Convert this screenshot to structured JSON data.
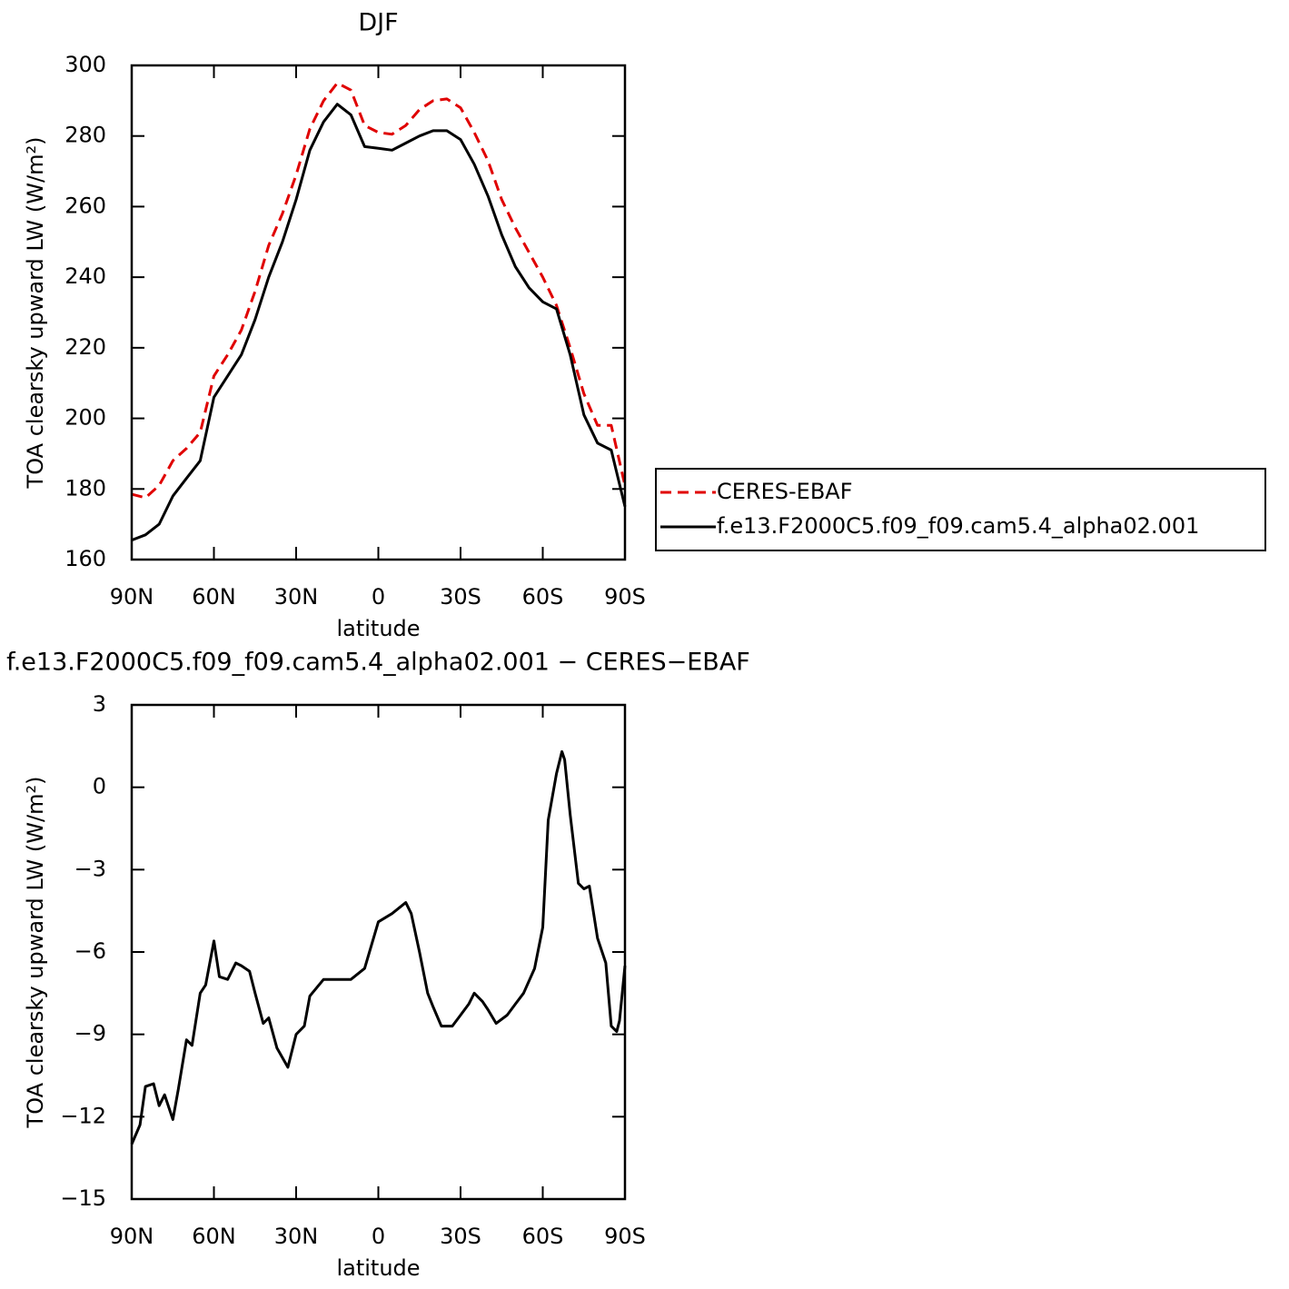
{
  "chart_data": [
    {
      "type": "line",
      "title": "DJF",
      "xlabel": "latitude",
      "ylabel": "TOA clearsky upward LW (W/m²)",
      "x": [
        90,
        85,
        80,
        75,
        70,
        65,
        60,
        55,
        50,
        45,
        40,
        35,
        30,
        25,
        20,
        15,
        10,
        5,
        0,
        -5,
        -10,
        -15,
        -20,
        -25,
        -30,
        -35,
        -40,
        -45,
        -50,
        -55,
        -60,
        -65,
        -70,
        -75,
        -80,
        -85,
        -90
      ],
      "series": [
        {
          "name": "CERES-EBAF",
          "color": "#e00000",
          "style": "dashed",
          "values": [
            178.5,
            177.5,
            181,
            188,
            191.5,
            196,
            212,
            218,
            225,
            236,
            249,
            258,
            269,
            282,
            290,
            295,
            293,
            283,
            281,
            280.5,
            283,
            287.5,
            290,
            290.5,
            288,
            281,
            273,
            262,
            254,
            247,
            240,
            232,
            220,
            207,
            198,
            198,
            181
          ]
        },
        {
          "name": "f.e13.F2000C5.f09_f09.cam5.4_alpha02.001",
          "color": "#000000",
          "style": "solid",
          "values": [
            165.5,
            167,
            170,
            178,
            183,
            188,
            206,
            212,
            218,
            228,
            240,
            250,
            262,
            276,
            284,
            289,
            286,
            277,
            276.5,
            276,
            278,
            280,
            281.5,
            281.5,
            279,
            272,
            263,
            252,
            243,
            237,
            233,
            231,
            218,
            201,
            193,
            191,
            175
          ]
        }
      ],
      "xlim": [
        90,
        -90
      ],
      "xticks": [
        {
          "value": 90,
          "label": "90N"
        },
        {
          "value": 60,
          "label": "60N"
        },
        {
          "value": 30,
          "label": "30N"
        },
        0,
        {
          "value": -30,
          "label": "30S"
        },
        {
          "value": -60,
          "label": "60S"
        },
        {
          "value": -90,
          "label": "90S"
        }
      ],
      "ylim": [
        160,
        300
      ],
      "yticks": [
        160,
        180,
        200,
        220,
        240,
        260,
        280,
        300
      ],
      "legend": "right"
    },
    {
      "type": "line",
      "title": "f.e13.F2000C5.f09_f09.cam5.4_alpha02.001 − CERES−EBAF",
      "xlabel": "latitude",
      "ylabel": "TOA clearsky upward LW (W/m²)",
      "x": [
        90,
        87,
        85,
        82,
        80,
        78,
        75,
        73,
        70,
        68,
        65,
        63,
        60,
        58,
        55,
        52,
        50,
        47,
        45,
        42,
        40,
        37,
        33,
        30,
        27,
        25,
        20,
        15,
        10,
        5,
        0,
        -5,
        -10,
        -12,
        -15,
        -18,
        -20,
        -23,
        -27,
        -30,
        -33,
        -35,
        -38,
        -40,
        -43,
        -47,
        -50,
        -53,
        -57,
        -60,
        -62,
        -65,
        -67,
        -68,
        -70,
        -73,
        -75,
        -77,
        -80,
        -83,
        -85,
        -87,
        -88,
        -90
      ],
      "values": [
        -13,
        -12.3,
        -10.9,
        -10.8,
        -11.6,
        -11.2,
        -12.1,
        -11,
        -9.2,
        -9.4,
        -7.5,
        -7.2,
        -5.6,
        -6.9,
        -7,
        -6.4,
        -6.5,
        -6.7,
        -7.5,
        -8.6,
        -8.4,
        -9.5,
        -10.2,
        -9,
        -8.7,
        -7.6,
        -7,
        -7,
        -7,
        -6.6,
        -4.9,
        -4.6,
        -4.2,
        -4.6,
        -6,
        -7.5,
        -8,
        -8.7,
        -8.7,
        -8.3,
        -7.9,
        -7.5,
        -7.8,
        -8.1,
        -8.6,
        -8.3,
        -7.9,
        -7.5,
        -6.6,
        -5.1,
        -1.2,
        0.5,
        1.3,
        1,
        -1,
        -3.5,
        -3.7,
        -3.6,
        -5.5,
        -6.4,
        -8.7,
        -8.9,
        -8.5,
        -6.5
      ],
      "color": "#000000",
      "xlim": [
        90,
        -90
      ],
      "xticks": [
        {
          "value": 90,
          "label": "90N"
        },
        {
          "value": 60,
          "label": "60N"
        },
        {
          "value": 30,
          "label": "30N"
        },
        0,
        {
          "value": -30,
          "label": "30S"
        },
        {
          "value": -60,
          "label": "60S"
        },
        {
          "value": -90,
          "label": "90S"
        }
      ],
      "ylim": [
        -15,
        3
      ],
      "yticks": [
        {
          "value": -15,
          "label": "−15"
        },
        {
          "value": -12,
          "label": "−12"
        },
        {
          "value": -9,
          "label": "−9"
        },
        {
          "value": -6,
          "label": "−6"
        },
        {
          "value": -3,
          "label": "−3"
        },
        0,
        3
      ]
    }
  ]
}
